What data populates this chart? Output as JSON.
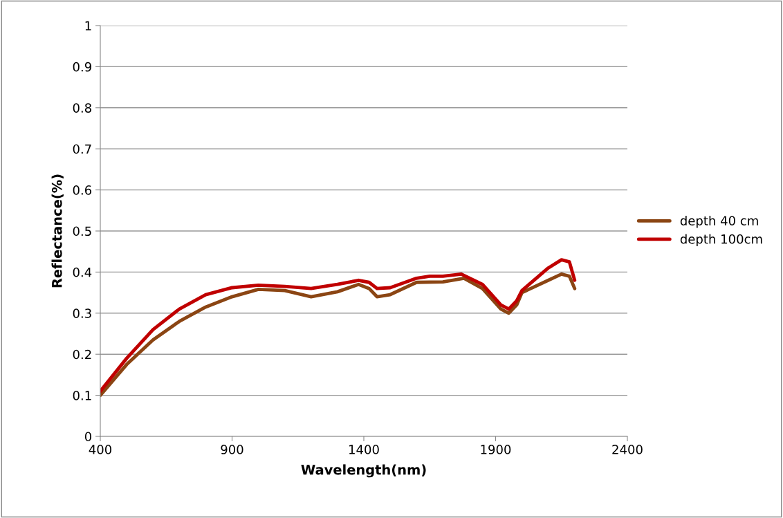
{
  "chart_data": {
    "type": "line",
    "xlabel": "Wavelength(nm)",
    "ylabel": "Reflectance(%)",
    "xlim": [
      400,
      2400
    ],
    "xticks": [
      400,
      900,
      1400,
      1900,
      2400
    ],
    "ylim": [
      0,
      1
    ],
    "yticks": [
      0,
      0.1,
      0.2,
      0.3,
      0.4,
      0.5,
      0.6,
      0.7,
      0.8,
      0.9,
      1
    ],
    "grid": "y",
    "legend": "right",
    "marker": "none",
    "line_style": "solid",
    "series": [
      {
        "name": "depth 40 cm",
        "color": "#8b4513",
        "x": [
          400,
          500,
          600,
          700,
          800,
          900,
          1000,
          1100,
          1200,
          1300,
          1380,
          1420,
          1450,
          1500,
          1600,
          1700,
          1780,
          1850,
          1920,
          1950,
          1980,
          2000,
          2100,
          2150,
          2180,
          2200
        ],
        "values": [
          0.1,
          0.175,
          0.235,
          0.28,
          0.315,
          0.34,
          0.358,
          0.355,
          0.34,
          0.352,
          0.37,
          0.36,
          0.34,
          0.345,
          0.375,
          0.376,
          0.385,
          0.36,
          0.31,
          0.3,
          0.32,
          0.35,
          0.38,
          0.395,
          0.39,
          0.36
        ]
      },
      {
        "name": "depth 100cm",
        "color": "#c00000",
        "x": [
          400,
          500,
          600,
          700,
          800,
          900,
          1000,
          1100,
          1200,
          1300,
          1380,
          1420,
          1450,
          1500,
          1600,
          1650,
          1700,
          1770,
          1850,
          1920,
          1950,
          1980,
          2000,
          2100,
          2150,
          2180,
          2200
        ],
        "values": [
          0.11,
          0.19,
          0.26,
          0.31,
          0.345,
          0.362,
          0.368,
          0.365,
          0.36,
          0.37,
          0.38,
          0.375,
          0.36,
          0.362,
          0.385,
          0.39,
          0.39,
          0.395,
          0.37,
          0.32,
          0.31,
          0.33,
          0.355,
          0.41,
          0.43,
          0.425,
          0.38
        ]
      }
    ]
  }
}
